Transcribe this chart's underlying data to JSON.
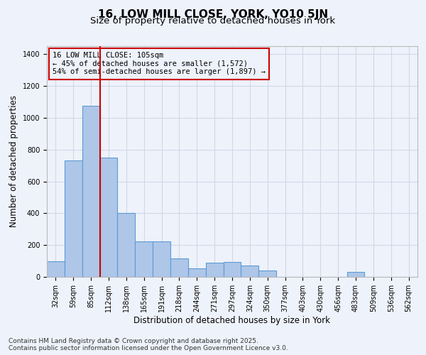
{
  "title": "16, LOW MILL CLOSE, YORK, YO10 5JN",
  "subtitle": "Size of property relative to detached houses in York",
  "xlabel": "Distribution of detached houses by size in York",
  "ylabel": "Number of detached properties",
  "categories": [
    "32sqm",
    "59sqm",
    "85sqm",
    "112sqm",
    "138sqm",
    "165sqm",
    "191sqm",
    "218sqm",
    "244sqm",
    "271sqm",
    "297sqm",
    "324sqm",
    "350sqm",
    "377sqm",
    "403sqm",
    "430sqm",
    "456sqm",
    "483sqm",
    "509sqm",
    "536sqm",
    "562sqm"
  ],
  "values": [
    100,
    730,
    1075,
    750,
    400,
    225,
    225,
    115,
    55,
    90,
    95,
    70,
    40,
    0,
    0,
    0,
    0,
    30,
    0,
    0,
    0
  ],
  "bar_color": "#aec6e8",
  "bar_edge_color": "#5b9bd5",
  "grid_color": "#d0d8e8",
  "bg_color": "#eef2fa",
  "vline_x": 2.5,
  "vline_color": "#cc0000",
  "annotation_text": "16 LOW MILL CLOSE: 105sqm\n← 45% of detached houses are smaller (1,572)\n54% of semi-detached houses are larger (1,897) →",
  "annotation_box_color": "#cc0000",
  "ylim": [
    0,
    1450
  ],
  "yticks": [
    0,
    200,
    400,
    600,
    800,
    1000,
    1200,
    1400
  ],
  "footer_text": "Contains HM Land Registry data © Crown copyright and database right 2025.\nContains public sector information licensed under the Open Government Licence v3.0.",
  "title_fontsize": 11,
  "subtitle_fontsize": 9.5,
  "label_fontsize": 8.5,
  "tick_fontsize": 7,
  "annotation_fontsize": 7.5,
  "footer_fontsize": 6.5
}
